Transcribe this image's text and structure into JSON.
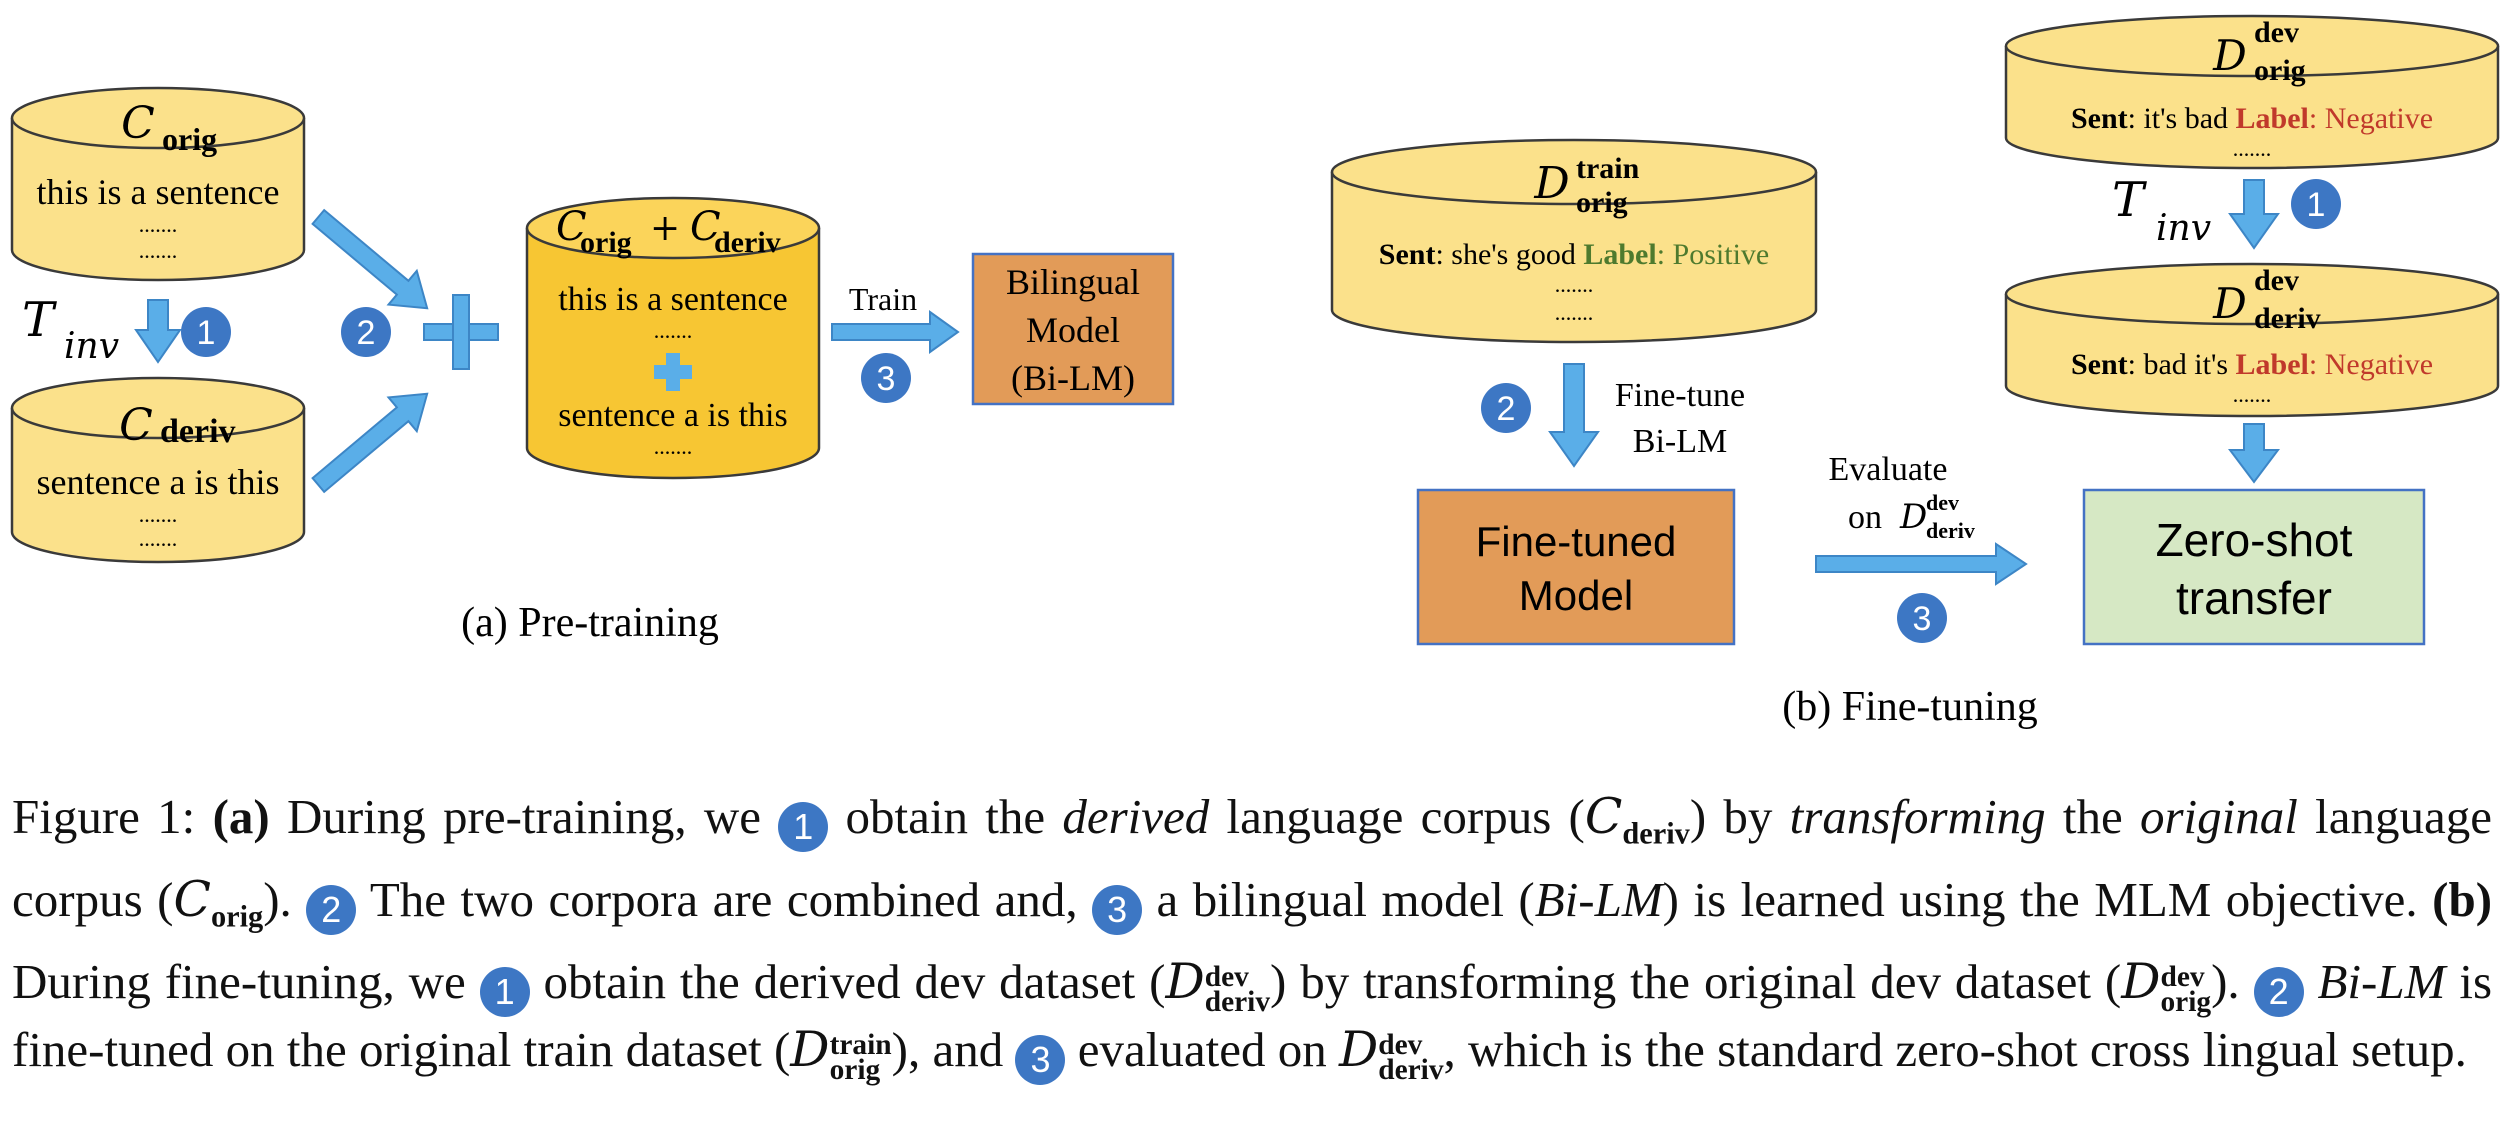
{
  "pretraining": {
    "corpus_orig": {
      "name": "C",
      "sub": "orig",
      "line": "this is a sentence",
      "dots1": ".......",
      "dots2": "......."
    },
    "corpus_deriv": {
      "name": "C",
      "sub": "deriv",
      "line": "sentence a is this",
      "dots1": ".......",
      "dots2": "......."
    },
    "transform": {
      "symbol": "T",
      "sub": "inv"
    },
    "combined": {
      "name_a": "C",
      "sub_a": "orig",
      "plus": "+",
      "name_b": "C",
      "sub_b": "deriv",
      "line1": "this is a sentence",
      "dots1": ".......",
      "line2": "sentence a is this",
      "dots2": "......."
    },
    "train_label": "Train",
    "model": {
      "line1": "Bilingual",
      "line2": "Model",
      "line3": "(Bi-LM)"
    },
    "caption": "(a) Pre-training"
  },
  "finetuning": {
    "train_db": {
      "name": "D",
      "sup": "train",
      "sub": "orig",
      "sent_label": "Sent",
      "sent": ": she's good ",
      "label_key": "Label",
      "label_val": ": Positive",
      "dots1": ".......",
      "dots2": "......."
    },
    "dev_orig_db": {
      "name": "D",
      "sup": "dev",
      "sub": "orig",
      "sent_label": "Sent",
      "sent": ": it's bad ",
      "label_key": "Label",
      "label_val": ": Negative",
      "dots": "......."
    },
    "dev_deriv_db": {
      "name": "D",
      "sup": "dev",
      "sub": "deriv",
      "sent_label": "Sent",
      "sent": ": bad it's ",
      "label_key": "Label",
      "label_val": ": Negative",
      "dots": "......."
    },
    "transform": {
      "symbol": "T",
      "sub": "inv"
    },
    "finetune_label": {
      "line1": "Fine-tune",
      "line2": "Bi-LM"
    },
    "finetuned_model": {
      "line1": "Fine-tuned",
      "line2": "Model"
    },
    "evaluate_label": {
      "line1": "Evaluate",
      "line2": "on",
      "name": "D",
      "sup": "dev",
      "sub": "deriv"
    },
    "zeroshot": {
      "line1": "Zero-shot",
      "line2": "transfer"
    },
    "caption": "(b) Fine-tuning"
  },
  "badges": {
    "one": "1",
    "two": "2",
    "three": "3"
  },
  "figure_caption": {
    "fig": "Figure 1: ",
    "a": "(a)",
    "t1": " During pre-training, we ",
    "t2": " obtain the ",
    "derived": "derived",
    "t3": " language corpus (",
    "t4": ") by ",
    "transforming": "transforming",
    "t5": " the ",
    "original": "original",
    "t6": " language corpus (",
    "t7": "). ",
    "t8": " The two corpora are combined and, ",
    "t9": " a bilingual model (",
    "bilm": "Bi-LM",
    "t10": ") is learned using the MLM objective. ",
    "b": "(b)",
    "t11": " During fine-tuning, we ",
    "t12": " obtain the derived dev dataset (",
    "t13": ") by transforming the original dev dataset (",
    "t14": "). ",
    "bilm2": "Bi-LM",
    "t15": " is fine-tuned on the original train dataset (",
    "t16": "), and ",
    "t17": " evaluated on ",
    "t18": ", which is the standard zero-shot cross lingual setup.",
    "C": "C",
    "D": "D",
    "orig": "orig",
    "deriv": "deriv",
    "dev": "dev",
    "train": "train"
  },
  "colors": {
    "db_fill": "#fbe18b",
    "db_fill_dark": "#f7c633",
    "db_stroke": "#3a3a3a",
    "arrow": "#5aaee8",
    "arrow_stroke": "#3d86c6",
    "badge": "#3d77c4",
    "model_fill": "#e29b58",
    "zeroshot_fill": "#d6e8c4",
    "box_stroke": "#4472c4",
    "positive": "#4e7a2e",
    "negative": "#c0392b"
  }
}
